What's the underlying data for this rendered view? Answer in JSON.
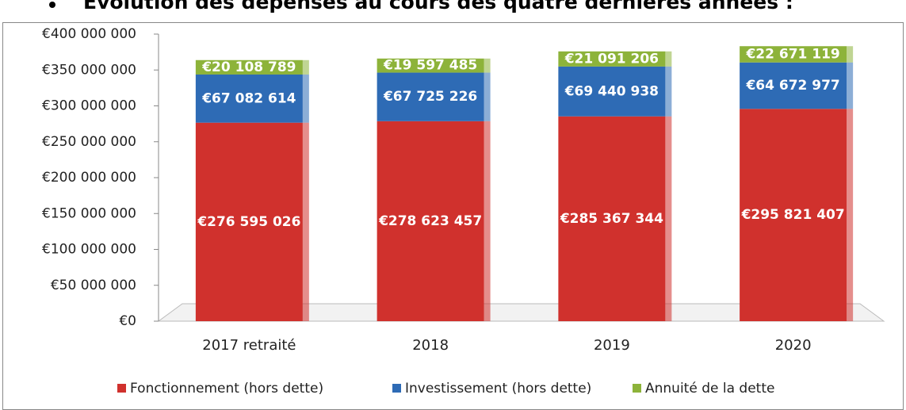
{
  "chart_data": {
    "type": "bar",
    "stacked": true,
    "title": "Evolution des dépenses au cours des quatre dernières années :",
    "categories": [
      "2017 retraité",
      "2018",
      "2019",
      "2020"
    ],
    "series": [
      {
        "name": "Fonctionnement (hors dette)",
        "color": "#d0312d",
        "values": [
          276595026,
          278623457,
          285367344,
          295821407
        ],
        "value_labels": [
          "€276 595 026",
          "€278 623 457",
          "€285 367 344",
          "€295 821 407"
        ]
      },
      {
        "name": "Investissement (hors dette)",
        "color": "#2e6bb5",
        "values": [
          67082614,
          67725226,
          69440938,
          64672977
        ],
        "value_labels": [
          "€67 082 614",
          "€67 725 226",
          "€69 440 938",
          "€64 672 977"
        ]
      },
      {
        "name": "Annuité de la dette",
        "color": "#8db33a",
        "values": [
          20108789,
          19597485,
          21091206,
          22671119
        ],
        "value_labels": [
          "€20 108 789",
          "€19 597 485",
          "€21 091 206",
          "€22 671 119"
        ]
      }
    ],
    "ylim": [
      0,
      400000000
    ],
    "yticks": [
      {
        "value": 0,
        "label": "€0"
      },
      {
        "value": 50000000,
        "label": "€50 000 000"
      },
      {
        "value": 100000000,
        "label": "€100 000 000"
      },
      {
        "value": 150000000,
        "label": "€150 000 000"
      },
      {
        "value": 200000000,
        "label": "€200 000 000"
      },
      {
        "value": 250000000,
        "label": "€250 000 000"
      },
      {
        "value": 300000000,
        "label": "€300 000 000"
      },
      {
        "value": 350000000,
        "label": "€350 000 000"
      },
      {
        "value": 400000000,
        "label": "€400 000 000"
      }
    ],
    "legend": "bottom"
  }
}
